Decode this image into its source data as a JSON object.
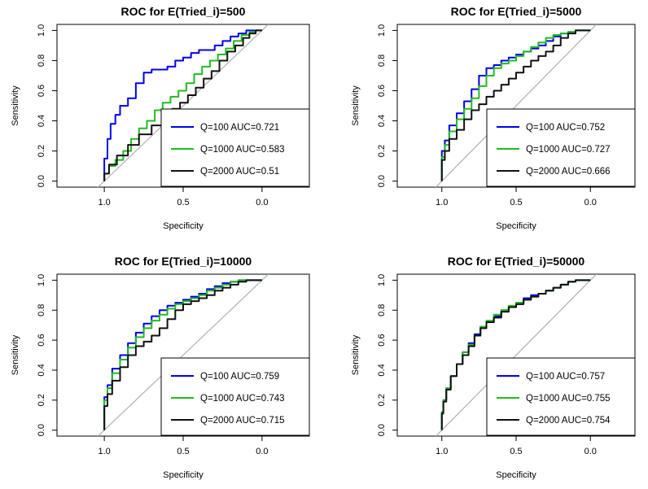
{
  "chart_data": [
    {
      "type": "line",
      "title": "ROC for E(Tried_i)=500",
      "xlabel": "Specificity",
      "ylabel": "Sensitivity",
      "xlim": [
        1.3,
        -0.3
      ],
      "ylim": [
        0,
        1
      ],
      "xticks": [
        "1.0",
        "0.5",
        "0.0"
      ],
      "yticks": [
        "0.0",
        "0.2",
        "0.4",
        "0.6",
        "0.8",
        "1.0"
      ],
      "legend_position": "bottom-right",
      "diagonal_reference": true,
      "series": [
        {
          "name": "Q=100 AUC=0.721",
          "color": "#0000ee",
          "x": [
            1.0,
            0.98,
            0.96,
            0.93,
            0.9,
            0.85,
            0.8,
            0.75,
            0.7,
            0.65,
            0.6,
            0.55,
            0.5,
            0.45,
            0.4,
            0.35,
            0.3,
            0.25,
            0.2,
            0.15,
            0.1,
            0.05,
            0.0
          ],
          "y": [
            0.0,
            0.15,
            0.28,
            0.38,
            0.44,
            0.5,
            0.55,
            0.65,
            0.72,
            0.74,
            0.74,
            0.76,
            0.8,
            0.82,
            0.85,
            0.87,
            0.87,
            0.9,
            0.93,
            0.96,
            0.98,
            1.0,
            1.0
          ]
        },
        {
          "name": "Q=1000 AUC=0.583",
          "color": "#22bb22",
          "x": [
            1.0,
            0.97,
            0.93,
            0.88,
            0.83,
            0.78,
            0.73,
            0.68,
            0.63,
            0.58,
            0.53,
            0.48,
            0.43,
            0.38,
            0.33,
            0.28,
            0.23,
            0.18,
            0.13,
            0.08,
            0.04,
            0.0
          ],
          "y": [
            0.0,
            0.05,
            0.1,
            0.14,
            0.2,
            0.28,
            0.35,
            0.4,
            0.47,
            0.52,
            0.56,
            0.6,
            0.65,
            0.71,
            0.76,
            0.8,
            0.84,
            0.88,
            0.93,
            0.97,
            0.99,
            1.0
          ]
        },
        {
          "name": "Q=2000 AUC=0.51",
          "color": "#111111",
          "x": [
            1.0,
            0.97,
            0.92,
            0.85,
            0.78,
            0.7,
            0.63,
            0.57,
            0.52,
            0.47,
            0.42,
            0.37,
            0.32,
            0.27,
            0.22,
            0.17,
            0.12,
            0.08,
            0.04,
            0.0
          ],
          "y": [
            0.0,
            0.05,
            0.11,
            0.17,
            0.24,
            0.31,
            0.37,
            0.43,
            0.48,
            0.52,
            0.57,
            0.62,
            0.68,
            0.73,
            0.8,
            0.86,
            0.9,
            0.95,
            0.98,
            1.0
          ]
        }
      ]
    },
    {
      "type": "line",
      "title": "ROC for E(Tried_i)=5000",
      "xlabel": "Specificity",
      "ylabel": "Sensitivity",
      "xlim": [
        1.3,
        -0.3
      ],
      "ylim": [
        0,
        1
      ],
      "xticks": [
        "1.0",
        "0.5",
        "0.0"
      ],
      "yticks": [
        "0.0",
        "0.2",
        "0.4",
        "0.6",
        "0.8",
        "1.0"
      ],
      "legend_position": "bottom-right",
      "diagonal_reference": true,
      "series": [
        {
          "name": "Q=100 AUC=0.752",
          "color": "#0000ee",
          "x": [
            1.0,
            0.98,
            0.95,
            0.9,
            0.85,
            0.8,
            0.75,
            0.7,
            0.65,
            0.6,
            0.55,
            0.5,
            0.45,
            0.4,
            0.35,
            0.3,
            0.25,
            0.2,
            0.15,
            0.1,
            0.05,
            0.0
          ],
          "y": [
            0.0,
            0.2,
            0.27,
            0.37,
            0.45,
            0.53,
            0.61,
            0.7,
            0.75,
            0.77,
            0.8,
            0.82,
            0.84,
            0.86,
            0.88,
            0.9,
            0.93,
            0.96,
            0.98,
            0.99,
            1.0,
            1.0
          ]
        },
        {
          "name": "Q=1000 AUC=0.727",
          "color": "#22bb22",
          "x": [
            1.0,
            0.98,
            0.95,
            0.9,
            0.85,
            0.8,
            0.75,
            0.7,
            0.65,
            0.6,
            0.55,
            0.5,
            0.45,
            0.4,
            0.35,
            0.3,
            0.25,
            0.2,
            0.15,
            0.1,
            0.05,
            0.0
          ],
          "y": [
            0.0,
            0.16,
            0.24,
            0.33,
            0.41,
            0.48,
            0.55,
            0.63,
            0.7,
            0.75,
            0.78,
            0.8,
            0.83,
            0.86,
            0.89,
            0.92,
            0.95,
            0.97,
            0.98,
            0.99,
            1.0,
            1.0
          ]
        },
        {
          "name": "Q=2000 AUC=0.666",
          "color": "#111111",
          "x": [
            1.0,
            0.98,
            0.95,
            0.9,
            0.85,
            0.8,
            0.75,
            0.7,
            0.65,
            0.6,
            0.55,
            0.5,
            0.45,
            0.4,
            0.35,
            0.3,
            0.25,
            0.2,
            0.15,
            0.1,
            0.05,
            0.0
          ],
          "y": [
            0.0,
            0.14,
            0.2,
            0.28,
            0.34,
            0.41,
            0.47,
            0.51,
            0.56,
            0.6,
            0.64,
            0.68,
            0.72,
            0.76,
            0.8,
            0.83,
            0.86,
            0.9,
            0.95,
            0.98,
            1.0,
            1.0
          ]
        }
      ]
    },
    {
      "type": "line",
      "title": "ROC for E(Tried_i)=10000",
      "xlabel": "Specificity",
      "ylabel": "Sensitivity",
      "xlim": [
        1.3,
        -0.3
      ],
      "ylim": [
        0,
        1
      ],
      "xticks": [
        "1.0",
        "0.5",
        "0.0"
      ],
      "yticks": [
        "0.0",
        "0.2",
        "0.4",
        "0.6",
        "0.8",
        "1.0"
      ],
      "legend_position": "bottom-right",
      "diagonal_reference": true,
      "series": [
        {
          "name": "Q=100 AUC=0.759",
          "color": "#0000ee",
          "x": [
            1.0,
            0.98,
            0.95,
            0.9,
            0.85,
            0.8,
            0.75,
            0.7,
            0.65,
            0.6,
            0.55,
            0.5,
            0.45,
            0.4,
            0.35,
            0.3,
            0.25,
            0.2,
            0.15,
            0.1,
            0.05,
            0.0
          ],
          "y": [
            0.0,
            0.22,
            0.3,
            0.41,
            0.5,
            0.58,
            0.65,
            0.71,
            0.76,
            0.8,
            0.83,
            0.85,
            0.87,
            0.89,
            0.91,
            0.94,
            0.96,
            0.98,
            0.99,
            1.0,
            1.0,
            1.0
          ]
        },
        {
          "name": "Q=1000 AUC=0.743",
          "color": "#22bb22",
          "x": [
            1.0,
            0.98,
            0.95,
            0.9,
            0.85,
            0.8,
            0.75,
            0.7,
            0.65,
            0.6,
            0.55,
            0.5,
            0.45,
            0.4,
            0.35,
            0.3,
            0.25,
            0.2,
            0.15,
            0.1,
            0.05,
            0.0
          ],
          "y": [
            0.0,
            0.2,
            0.28,
            0.38,
            0.47,
            0.55,
            0.62,
            0.68,
            0.73,
            0.77,
            0.81,
            0.84,
            0.86,
            0.88,
            0.9,
            0.93,
            0.95,
            0.97,
            0.99,
            1.0,
            1.0,
            1.0
          ]
        },
        {
          "name": "Q=2000 AUC=0.715",
          "color": "#111111",
          "x": [
            1.0,
            0.98,
            0.95,
            0.9,
            0.85,
            0.8,
            0.75,
            0.7,
            0.65,
            0.6,
            0.55,
            0.5,
            0.45,
            0.4,
            0.35,
            0.3,
            0.25,
            0.2,
            0.15,
            0.1,
            0.05,
            0.0
          ],
          "y": [
            0.0,
            0.16,
            0.24,
            0.33,
            0.42,
            0.5,
            0.56,
            0.59,
            0.63,
            0.68,
            0.74,
            0.8,
            0.84,
            0.86,
            0.88,
            0.9,
            0.93,
            0.95,
            0.97,
            0.99,
            1.0,
            1.0
          ]
        }
      ]
    },
    {
      "type": "line",
      "title": "ROC for E(Tried_i)=50000",
      "xlabel": "Specificity",
      "ylabel": "Sensitivity",
      "xlim": [
        1.3,
        -0.3
      ],
      "ylim": [
        0,
        1
      ],
      "xticks": [
        "1.0",
        "0.5",
        "0.0"
      ],
      "yticks": [
        "0.0",
        "0.2",
        "0.4",
        "0.6",
        "0.8",
        "1.0"
      ],
      "legend_position": "bottom-right",
      "diagonal_reference": true,
      "series": [
        {
          "name": "Q=100 AUC=0.757",
          "color": "#0000ee",
          "x": [
            1.0,
            0.99,
            0.97,
            0.94,
            0.9,
            0.86,
            0.82,
            0.78,
            0.74,
            0.7,
            0.65,
            0.6,
            0.55,
            0.5,
            0.45,
            0.4,
            0.35,
            0.3,
            0.25,
            0.2,
            0.15,
            0.1,
            0.05,
            0.0
          ],
          "y": [
            0.0,
            0.12,
            0.2,
            0.28,
            0.36,
            0.44,
            0.52,
            0.58,
            0.64,
            0.69,
            0.72,
            0.76,
            0.8,
            0.82,
            0.85,
            0.88,
            0.9,
            0.91,
            0.93,
            0.95,
            0.97,
            0.99,
            1.0,
            1.0
          ]
        },
        {
          "name": "Q=1000 AUC=0.755",
          "color": "#22bb22",
          "x": [
            1.0,
            0.99,
            0.97,
            0.94,
            0.9,
            0.86,
            0.82,
            0.78,
            0.74,
            0.7,
            0.65,
            0.6,
            0.55,
            0.5,
            0.45,
            0.4,
            0.35,
            0.3,
            0.25,
            0.2,
            0.15,
            0.1,
            0.05,
            0.0
          ],
          "y": [
            0.0,
            0.12,
            0.2,
            0.28,
            0.36,
            0.44,
            0.52,
            0.57,
            0.63,
            0.69,
            0.73,
            0.77,
            0.8,
            0.83,
            0.85,
            0.87,
            0.89,
            0.91,
            0.93,
            0.95,
            0.97,
            0.99,
            1.0,
            1.0
          ]
        },
        {
          "name": "Q=2000 AUC=0.754",
          "color": "#111111",
          "x": [
            1.0,
            0.99,
            0.97,
            0.94,
            0.9,
            0.86,
            0.82,
            0.78,
            0.74,
            0.7,
            0.65,
            0.6,
            0.55,
            0.5,
            0.45,
            0.4,
            0.35,
            0.3,
            0.25,
            0.2,
            0.15,
            0.1,
            0.05,
            0.0
          ],
          "y": [
            0.0,
            0.11,
            0.19,
            0.27,
            0.36,
            0.44,
            0.5,
            0.56,
            0.63,
            0.68,
            0.72,
            0.75,
            0.79,
            0.82,
            0.84,
            0.87,
            0.89,
            0.91,
            0.93,
            0.95,
            0.97,
            0.99,
            1.0,
            1.0
          ]
        }
      ]
    }
  ]
}
